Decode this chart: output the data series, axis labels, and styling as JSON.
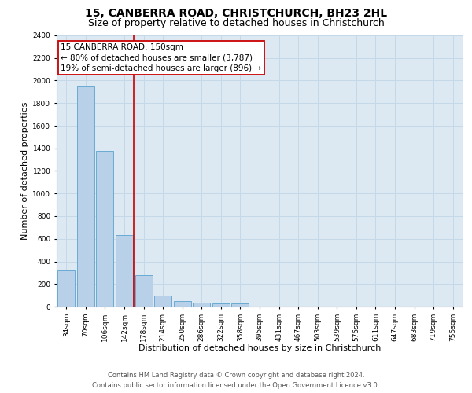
{
  "title": "15, CANBERRA ROAD, CHRISTCHURCH, BH23 2HL",
  "subtitle": "Size of property relative to detached houses in Christchurch",
  "xlabel": "Distribution of detached houses by size in Christchurch",
  "ylabel": "Number of detached properties",
  "categories": [
    "34sqm",
    "70sqm",
    "106sqm",
    "142sqm",
    "178sqm",
    "214sqm",
    "250sqm",
    "286sqm",
    "322sqm",
    "358sqm",
    "395sqm",
    "431sqm",
    "467sqm",
    "503sqm",
    "539sqm",
    "575sqm",
    "611sqm",
    "647sqm",
    "683sqm",
    "719sqm",
    "755sqm"
  ],
  "values": [
    320,
    1950,
    1380,
    630,
    280,
    100,
    50,
    35,
    25,
    25,
    0,
    0,
    0,
    0,
    0,
    0,
    0,
    0,
    0,
    0,
    0
  ],
  "bar_color": "#b8d0e8",
  "bar_edge_color": "#6aaad4",
  "property_line_color": "#cc0000",
  "annotation_text": "15 CANBERRA ROAD: 150sqm\n← 80% of detached houses are smaller (3,787)\n19% of semi-detached houses are larger (896) →",
  "annotation_box_color": "#cc0000",
  "ylim": [
    0,
    2400
  ],
  "yticks": [
    0,
    200,
    400,
    600,
    800,
    1000,
    1200,
    1400,
    1600,
    1800,
    2000,
    2200,
    2400
  ],
  "grid_color": "#c5d8e8",
  "background_color": "#dce8f2",
  "footer_text": "Contains HM Land Registry data © Crown copyright and database right 2024.\nContains public sector information licensed under the Open Government Licence v3.0.",
  "title_fontsize": 10,
  "subtitle_fontsize": 9,
  "xlabel_fontsize": 8,
  "ylabel_fontsize": 8,
  "tick_fontsize": 6.5,
  "annotation_fontsize": 7.5,
  "footer_fontsize": 6
}
